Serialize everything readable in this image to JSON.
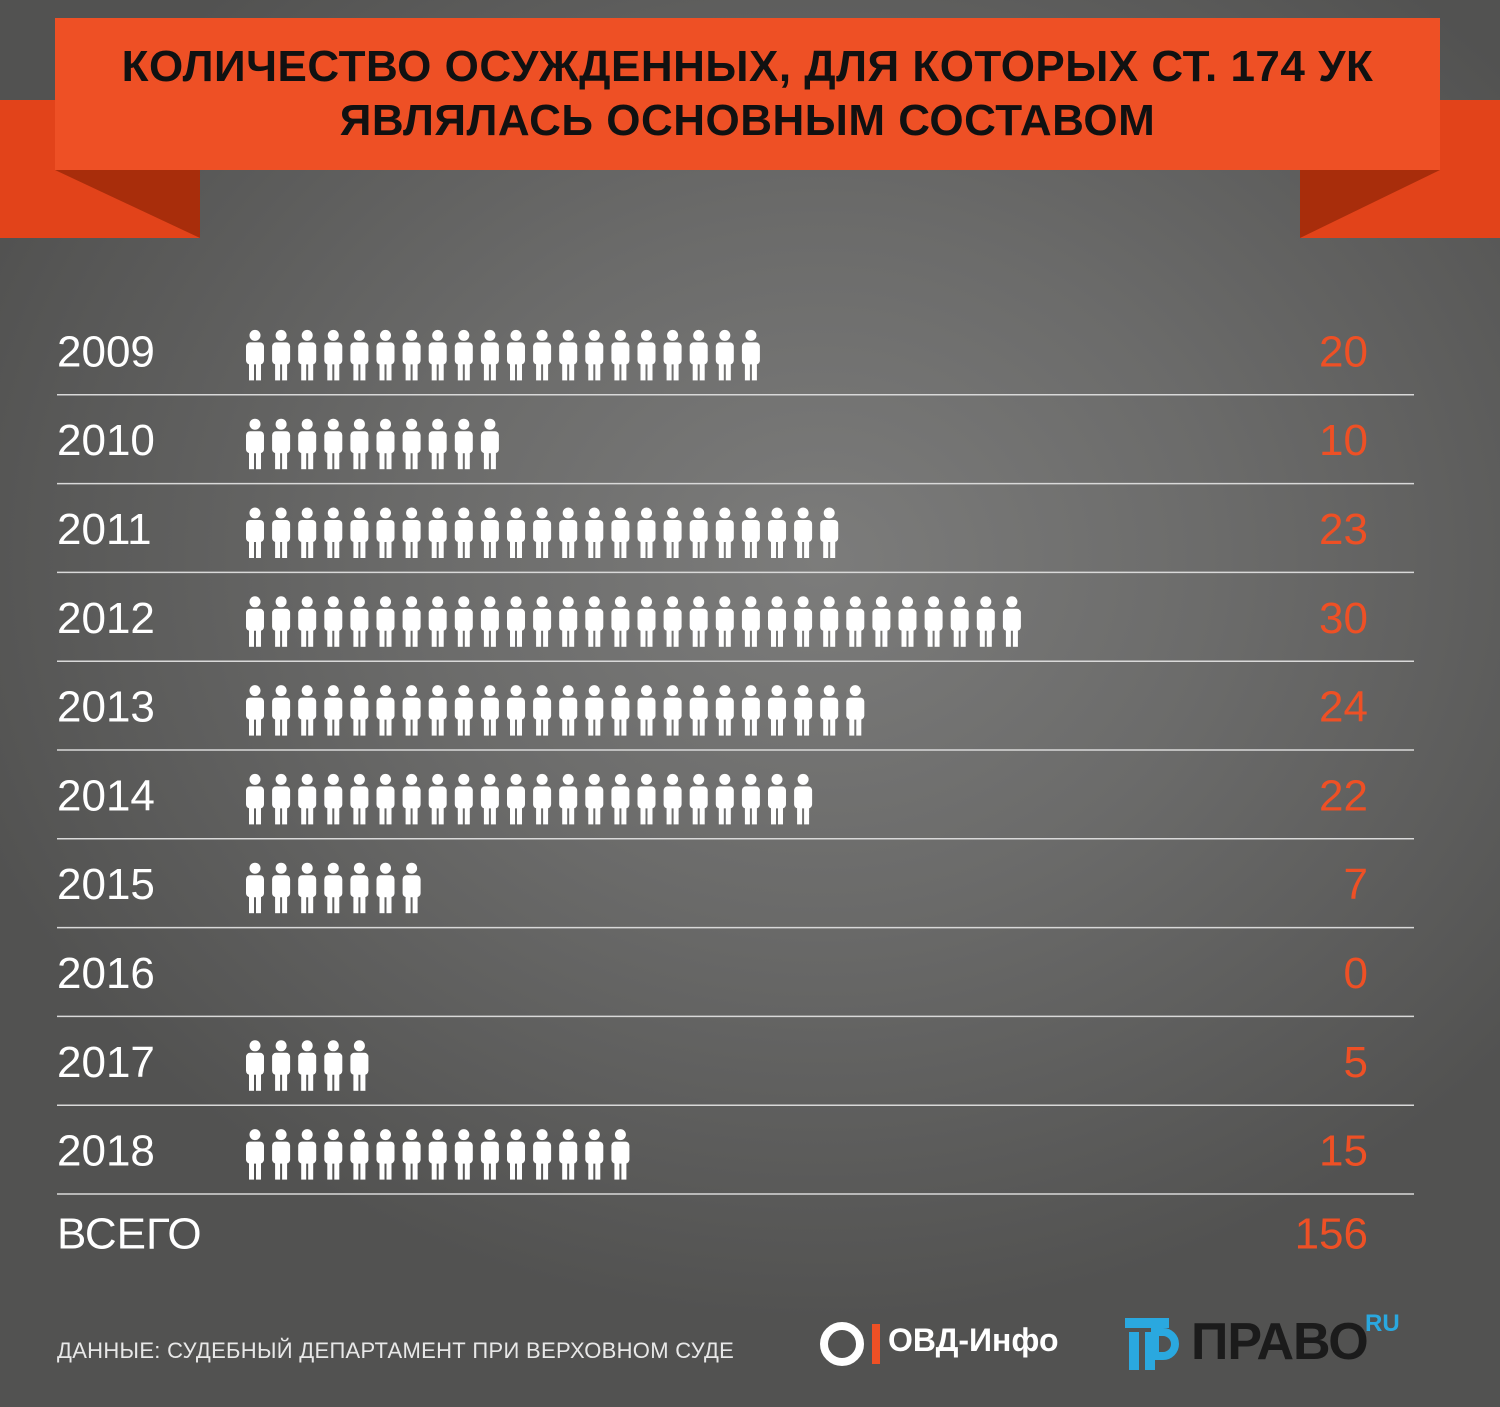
{
  "title": {
    "line1": "КОЛИЧЕСТВО ОСУЖДЕННЫХ, ДЛЯ КОТОРЫХ СТ. 174 УК",
    "line2": "ЯВЛЯЛАСЬ ОСНОВНЫМ СОСТАВОМ"
  },
  "colors": {
    "banner": "#ee5025",
    "banner_fold": "#d63d12",
    "banner_fold_shadow": "#a82d0b",
    "value_text": "#ee5025",
    "label_text": "#ffffff",
    "icon": "#ffffff",
    "divider": "#d9d9d9",
    "logo_blue": "#2aa8df"
  },
  "chart_data": {
    "type": "table",
    "categories": [
      "2009",
      "2010",
      "2011",
      "2012",
      "2013",
      "2014",
      "2015",
      "2016",
      "2017",
      "2018"
    ],
    "values": [
      20,
      10,
      23,
      30,
      24,
      22,
      7,
      0,
      5,
      15
    ],
    "icon": "person-icon",
    "total": {
      "label": "ВСЕГО",
      "value": 156
    }
  },
  "footer": {
    "source": "ДАННЫЕ: СУДЕБНЫЙ ДЕПАРТАМЕНТ ПРИ ВЕРХОВНОМ СУДЕ",
    "logo_ovd": "ОВД-Инфо",
    "logo_pravo": "ПРАВО",
    "logo_pravo_ru": "RU"
  }
}
